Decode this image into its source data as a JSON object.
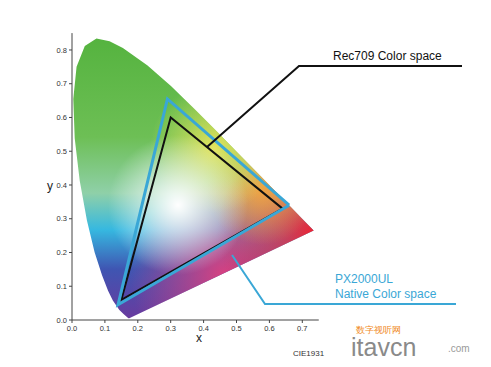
{
  "chart_data": {
    "type": "line",
    "x_label": "x",
    "y_label": "y",
    "xlim": [
      0,
      0.75
    ],
    "ylim": [
      0,
      0.85
    ],
    "xticks": [
      {
        "value": 0,
        "label": "0.0"
      },
      0.1,
      0.2,
      0.3,
      0.4,
      0.5,
      0.6,
      0.7
    ],
    "yticks": [
      {
        "value": 0,
        "label": "0.0"
      },
      0.1,
      0.2,
      0.3,
      0.4,
      0.5,
      0.6,
      0.7,
      0.8
    ],
    "grid": false,
    "series": [
      {
        "type": "area",
        "x": [
          0.1741,
          0.1714,
          0.1644,
          0.1566,
          0.144,
          0.1241,
          0.1096,
          0.0913,
          0.0687,
          0.0454,
          0.0235,
          0.0082,
          0.0039,
          0.0139,
          0.0389,
          0.0743,
          0.1142,
          0.1547,
          0.2296,
          0.3016,
          0.3731,
          0.4441,
          0.5125,
          0.5752,
          0.627,
          0.6658,
          0.6915,
          0.719,
          0.7347
        ],
        "values": [
          0.005,
          0.0051,
          0.0109,
          0.0177,
          0.0297,
          0.0578,
          0.0868,
          0.1327,
          0.2007,
          0.295,
          0.4127,
          0.5384,
          0.6548,
          0.7502,
          0.812,
          0.8338,
          0.8262,
          0.8059,
          0.7543,
          0.6923,
          0.6245,
          0.5547,
          0.4866,
          0.4242,
          0.3725,
          0.334,
          0.3083,
          0.2809,
          0.2653
        ]
      },
      {
        "type": "line",
        "color": "#111111",
        "x": [
          0.64,
          0.3,
          0.15,
          0.64
        ],
        "values": [
          0.33,
          0.6,
          0.06,
          0.33
        ]
      },
      {
        "type": "line",
        "color": "#3aa7d6",
        "x": [
          0.66,
          0.29,
          0.14,
          0.66
        ],
        "values": [
          0.34,
          0.655,
          0.045,
          0.34
        ]
      }
    ],
    "annotations": [
      "Rec709 Color space",
      "PX2000UL",
      "Native Color space",
      "CIE1931",
      "数字视听网",
      "itavcn",
      ".com"
    ]
  }
}
